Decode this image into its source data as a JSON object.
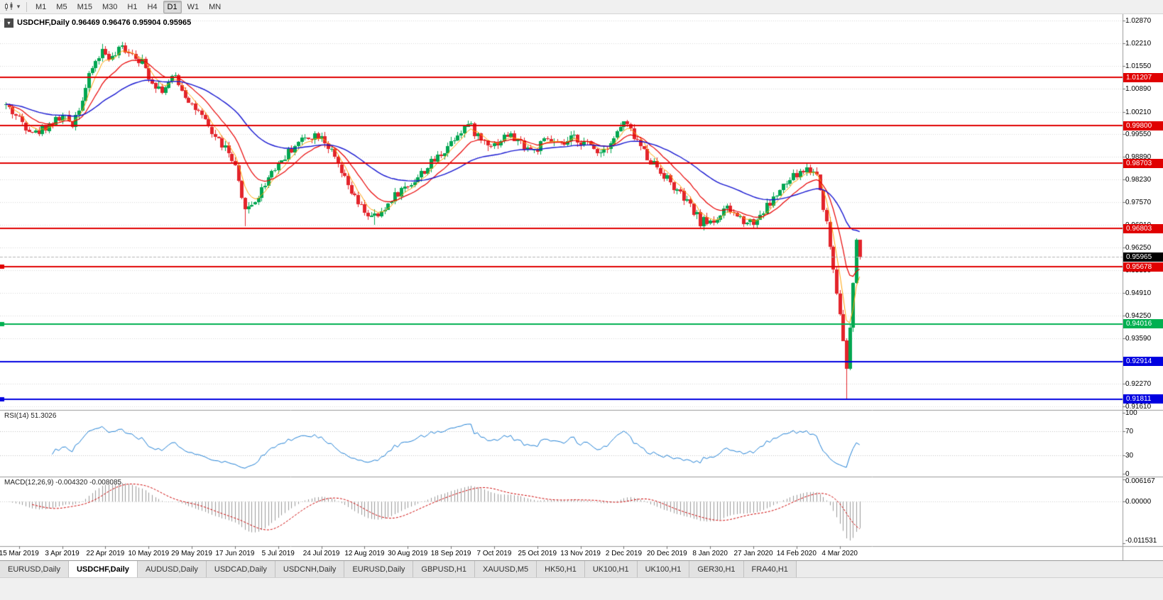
{
  "toolbar": {
    "timeframes": [
      {
        "label": "M1",
        "active": false
      },
      {
        "label": "M5",
        "active": false
      },
      {
        "label": "M15",
        "active": false
      },
      {
        "label": "M30",
        "active": false
      },
      {
        "label": "H1",
        "active": false
      },
      {
        "label": "H4",
        "active": false
      },
      {
        "label": "D1",
        "active": true
      },
      {
        "label": "W1",
        "active": false
      },
      {
        "label": "MN",
        "active": false
      }
    ]
  },
  "chart": {
    "symbol_ohlc": "USDCHF,Daily 0.96469 0.96476 0.95904 0.95965",
    "symbol": "USDCHF",
    "period": "Daily",
    "open": "0.96469",
    "high": "0.96476",
    "low": "0.95904",
    "close": "0.95965"
  },
  "price_axis": {
    "max": 1.0306,
    "min": 0.915,
    "ticks": [
      "1.02870",
      "1.02210",
      "1.01550",
      "1.00890",
      "1.00210",
      "0.99550",
      "0.98890",
      "0.98230",
      "0.97570",
      "0.96910",
      "0.96250",
      "0.95590",
      "0.94910",
      "0.94250",
      "0.93590",
      "0.92930",
      "0.92270",
      "0.91610"
    ]
  },
  "hlines": [
    {
      "label": "1.01207",
      "price": 1.01207,
      "color": "#e00000",
      "marker": false
    },
    {
      "label": "0.99800",
      "price": 0.998,
      "color": "#e00000",
      "marker": false
    },
    {
      "label": "0.98703",
      "price": 0.98703,
      "color": "#e00000",
      "marker": false
    },
    {
      "label": "0.96803",
      "price": 0.96803,
      "color": "#e00000",
      "marker": false
    },
    {
      "label": "0.95678",
      "price": 0.95678,
      "color": "#e00000",
      "marker": true
    },
    {
      "label": "0.94016",
      "price": 0.94016,
      "color": "#00b050",
      "marker": true
    },
    {
      "label": "0.92914",
      "price": 0.92914,
      "color": "#0000e0",
      "marker": false
    },
    {
      "label": "0.91811",
      "price": 0.91811,
      "color": "#0000e0",
      "marker": true
    }
  ],
  "current_price": {
    "label": "0.95965",
    "price": 0.95965,
    "line_color": "#b4b4b4",
    "box_color": "#000000"
  },
  "rsi": {
    "label": "RSI(14) 51.3026",
    "value": "51.3026",
    "line_color": "#1f7fd4",
    "levels": [
      {
        "label": "100",
        "value": 100
      },
      {
        "label": "70",
        "value": 70
      },
      {
        "label": "30",
        "value": 30
      },
      {
        "label": "0",
        "value": 0
      }
    ]
  },
  "macd": {
    "label": "MACD(12,26,9) -0.004320 -0.008085",
    "macd_value": "-0.004320",
    "signal_value": "-0.008085",
    "histogram_color": "#9a9a9a",
    "signal_color": "#cc0000",
    "axis_max": {
      "label": "0.006167",
      "value": 0.006167
    },
    "axis_zero": {
      "label": "0.00000",
      "value": 0
    },
    "axis_min": {
      "label": "-0.011531",
      "value": -0.011531
    }
  },
  "date_axis": [
    {
      "label": "15 Mar 2019",
      "bar": 4
    },
    {
      "label": "3 Apr 2019",
      "bar": 17
    },
    {
      "label": "22 Apr 2019",
      "bar": 30
    },
    {
      "label": "10 May 2019",
      "bar": 43
    },
    {
      "label": "29 May 2019",
      "bar": 56
    },
    {
      "label": "17 Jun 2019",
      "bar": 69
    },
    {
      "label": "5 Jul 2019",
      "bar": 82
    },
    {
      "label": "24 Jul 2019",
      "bar": 95
    },
    {
      "label": "12 Aug 2019",
      "bar": 108
    },
    {
      "label": "30 Aug 2019",
      "bar": 121
    },
    {
      "label": "18 Sep 2019",
      "bar": 134
    },
    {
      "label": "7 Oct 2019",
      "bar": 147
    },
    {
      "label": "25 Oct 2019",
      "bar": 160
    },
    {
      "label": "13 Nov 2019",
      "bar": 173
    },
    {
      "label": "2 Dec 2019",
      "bar": 186
    },
    {
      "label": "20 Dec 2019",
      "bar": 199
    },
    {
      "label": "8 Jan 2020",
      "bar": 212
    },
    {
      "label": "27 Jan 2020",
      "bar": 225
    },
    {
      "label": "14 Feb 2020",
      "bar": 238
    },
    {
      "label": "4 Mar 2020",
      "bar": 251
    }
  ],
  "tabs": [
    {
      "label": "EURUSD,Daily",
      "active": false
    },
    {
      "label": "USDCHF,Daily",
      "active": true
    },
    {
      "label": "AUDUSD,Daily",
      "active": false
    },
    {
      "label": "USDCAD,Daily",
      "active": false
    },
    {
      "label": "USDCNH,Daily",
      "active": false
    },
    {
      "label": "EURUSD,Daily",
      "active": false
    },
    {
      "label": "GBPUSD,H1",
      "active": false
    },
    {
      "label": "XAUUSD,M5",
      "active": false
    },
    {
      "label": "HK50,H1",
      "active": false
    },
    {
      "label": "UK100,H1",
      "active": false
    },
    {
      "label": "UK100,H1",
      "active": false
    },
    {
      "label": "GER30,H1",
      "active": false
    },
    {
      "label": "FRA40,H1",
      "active": false
    }
  ],
  "chart_data": {
    "type": "candlestick",
    "symbol": "USDCHF",
    "timeframe": "Daily",
    "bar_count": 258,
    "seed": 42,
    "noise": 0.0014,
    "wick": 0.0013,
    "colors": {
      "up": "#00a651",
      "down": "#e3242b"
    },
    "ma": [
      {
        "period": 5,
        "color": "#ffa000",
        "width": 1
      },
      {
        "period": 13,
        "color": "#e80000",
        "width": 1.2
      },
      {
        "period": 40,
        "color": "#1515d0",
        "width": 1.4
      }
    ],
    "last_ohlc": {
      "open": 0.96469,
      "high": 0.96476,
      "low": 0.95904,
      "close": 0.95965
    },
    "anchors": [
      [
        0,
        1.004
      ],
      [
        5,
        0.999
      ],
      [
        9,
        0.9958
      ],
      [
        13,
        0.9985
      ],
      [
        17,
        1.0005
      ],
      [
        20,
        0.9988
      ],
      [
        23,
        1.006
      ],
      [
        26,
        1.015
      ],
      [
        29,
        1.02
      ],
      [
        32,
        1.0175
      ],
      [
        35,
        1.021
      ],
      [
        38,
        1.0195
      ],
      [
        41,
        1.0165
      ],
      [
        44,
        1.011
      ],
      [
        47,
        1.0085
      ],
      [
        51,
        1.0125
      ],
      [
        54,
        1.007
      ],
      [
        58,
        1.0015
      ],
      [
        62,
        0.996
      ],
      [
        66,
        0.9915
      ],
      [
        69,
        0.9855
      ],
      [
        71,
        0.976
      ],
      [
        73,
        0.9738
      ],
      [
        76,
        0.9775
      ],
      [
        80,
        0.985
      ],
      [
        83,
        0.988
      ],
      [
        87,
        0.9925
      ],
      [
        91,
        0.995
      ],
      [
        95,
        0.9955
      ],
      [
        98,
        0.99
      ],
      [
        102,
        0.982
      ],
      [
        106,
        0.975
      ],
      [
        110,
        0.9712
      ],
      [
        113,
        0.972
      ],
      [
        116,
        0.977
      ],
      [
        120,
        0.98
      ],
      [
        124,
        0.983
      ],
      [
        128,
        0.987
      ],
      [
        132,
        0.991
      ],
      [
        136,
        0.996
      ],
      [
        139,
        0.9985
      ],
      [
        143,
        0.994
      ],
      [
        147,
        0.9925
      ],
      [
        151,
        0.9955
      ],
      [
        155,
        0.993
      ],
      [
        159,
        0.9905
      ],
      [
        163,
        0.994
      ],
      [
        167,
        0.992
      ],
      [
        171,
        0.9945
      ],
      [
        175,
        0.9925
      ],
      [
        179,
        0.9905
      ],
      [
        183,
        0.9945
      ],
      [
        186,
        0.999
      ],
      [
        189,
        0.995
      ],
      [
        193,
        0.989
      ],
      [
        197,
        0.985
      ],
      [
        201,
        0.98
      ],
      [
        205,
        0.9755
      ],
      [
        209,
        0.97
      ],
      [
        213,
        0.9703
      ],
      [
        217,
        0.9735
      ],
      [
        221,
        0.971
      ],
      [
        225,
        0.9698
      ],
      [
        229,
        0.9745
      ],
      [
        233,
        0.979
      ],
      [
        237,
        0.983
      ],
      [
        241,
        0.9855
      ],
      [
        244,
        0.984
      ],
      [
        247,
        0.97
      ],
      [
        249,
        0.956
      ],
      [
        251,
        0.943
      ],
      [
        253,
        0.927
      ],
      [
        254,
        0.939
      ],
      [
        255,
        0.952
      ],
      [
        256,
        0.9647
      ],
      [
        257,
        0.95965
      ]
    ],
    "close_overrides": {
      "247": 0.97,
      "249": 0.956,
      "251": 0.943,
      "252": 0.9352,
      "253": 0.927,
      "254": 0.939,
      "255": 0.952,
      "256": 0.96469,
      "257": 0.95965
    },
    "wick_overrides": {
      "35": {
        "h": 1.0226
      },
      "72": {
        "l": 0.9685
      },
      "111": {
        "l": 0.969
      },
      "253": {
        "l": 0.9182
      },
      "256": {
        "h": 0.9652
      },
      "257": {
        "h": 0.96476,
        "l": 0.95904
      }
    }
  }
}
